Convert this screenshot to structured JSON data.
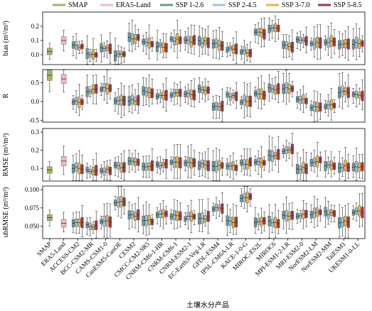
{
  "chart_data": {
    "type": "box",
    "xlabel": "土壤水分产品",
    "colors": {
      "SMAP": "#a6b36a",
      "ERA5-Land": "#f2b8c9",
      "SSP 1-2.6": "#6d9a94",
      "SSP 2-4.5": "#a8bfd8",
      "SSP 3-7.0": "#e6b54a",
      "SSP 5-8.5": "#a8324e"
    },
    "legend": [
      "SMAP",
      "ERA5-Land",
      "SSP 1-2.6",
      "SSP 2-4.5",
      "SSP 3-7.0",
      "SSP 5-8.5"
    ],
    "categories": [
      "SMAP",
      "ERA5-Land",
      "ACCESS-CM2",
      "BCC-CSM2-MR",
      "CAMS-CSM1-0",
      "CanESM5-CanOE",
      "CESM2",
      "CMCC-CM2-SR5",
      "CNRM-CM6-1-HR",
      "CNRM-CM6-1",
      "CNRM-ESM2-1",
      "EC-Earth3-Veg-LR",
      "GFDL-ESM4",
      "IPSL-CM6A-LR",
      "KACE-1-0-G",
      "MIROC-ES2L",
      "MIROC6",
      "MPI-ESM1-2-LR",
      "MRI-ESM2-0",
      "NorESM2-LM",
      "NorESM2-MM",
      "TaiESM1",
      "UKESM1-0-LL"
    ],
    "panels": [
      {
        "ylabel": "bias (m³/m³)",
        "ylim": [
          -0.07,
          0.3
        ],
        "yticks": [
          "0.0",
          "0.1",
          "0.2"
        ],
        "centers": [
          0.03,
          0.1,
          0.06,
          0.0,
          0.04,
          0.0,
          0.12,
          0.08,
          0.06,
          0.1,
          0.1,
          0.09,
          0.07,
          0.04,
          0.02,
          0.15,
          0.18,
          0.06,
          0.1,
          0.08,
          0.09,
          0.07,
          0.08
        ]
      },
      {
        "ylabel": "R",
        "ylim": [
          -0.55,
          0.85
        ],
        "yticks": [
          "-0.5",
          "0.0",
          "0.5"
        ],
        "centers": [
          0.68,
          0.6,
          0.0,
          0.3,
          0.35,
          0.0,
          0.05,
          0.25,
          0.15,
          0.2,
          0.2,
          0.3,
          -0.15,
          0.15,
          0.0,
          0.2,
          0.35,
          0.35,
          0.05,
          -0.15,
          -0.1,
          0.25,
          0.15
        ]
      },
      {
        "ylabel": "RMSE (m³/m³)",
        "ylim": [
          0.03,
          0.32
        ],
        "yticks": [
          "0.1",
          "0.2",
          "0.3"
        ],
        "centers": [
          0.09,
          0.14,
          0.1,
          0.09,
          0.09,
          0.11,
          0.14,
          0.11,
          0.12,
          0.13,
          0.13,
          0.12,
          0.11,
          0.11,
          0.13,
          0.13,
          0.17,
          0.2,
          0.1,
          0.14,
          0.12,
          0.11,
          0.11
        ]
      },
      {
        "ylabel": "ubRMSE (m³/m³)",
        "ylim": [
          0.033,
          0.105
        ],
        "yticks": [
          "0.050",
          "0.075",
          "0.100"
        ],
        "centers": [
          0.062,
          0.056,
          0.055,
          0.05,
          0.056,
          0.083,
          0.064,
          0.058,
          0.065,
          0.065,
          0.062,
          0.062,
          0.075,
          0.057,
          0.09,
          0.057,
          0.055,
          0.063,
          0.065,
          0.068,
          0.068,
          0.055,
          0.07
        ]
      }
    ]
  }
}
